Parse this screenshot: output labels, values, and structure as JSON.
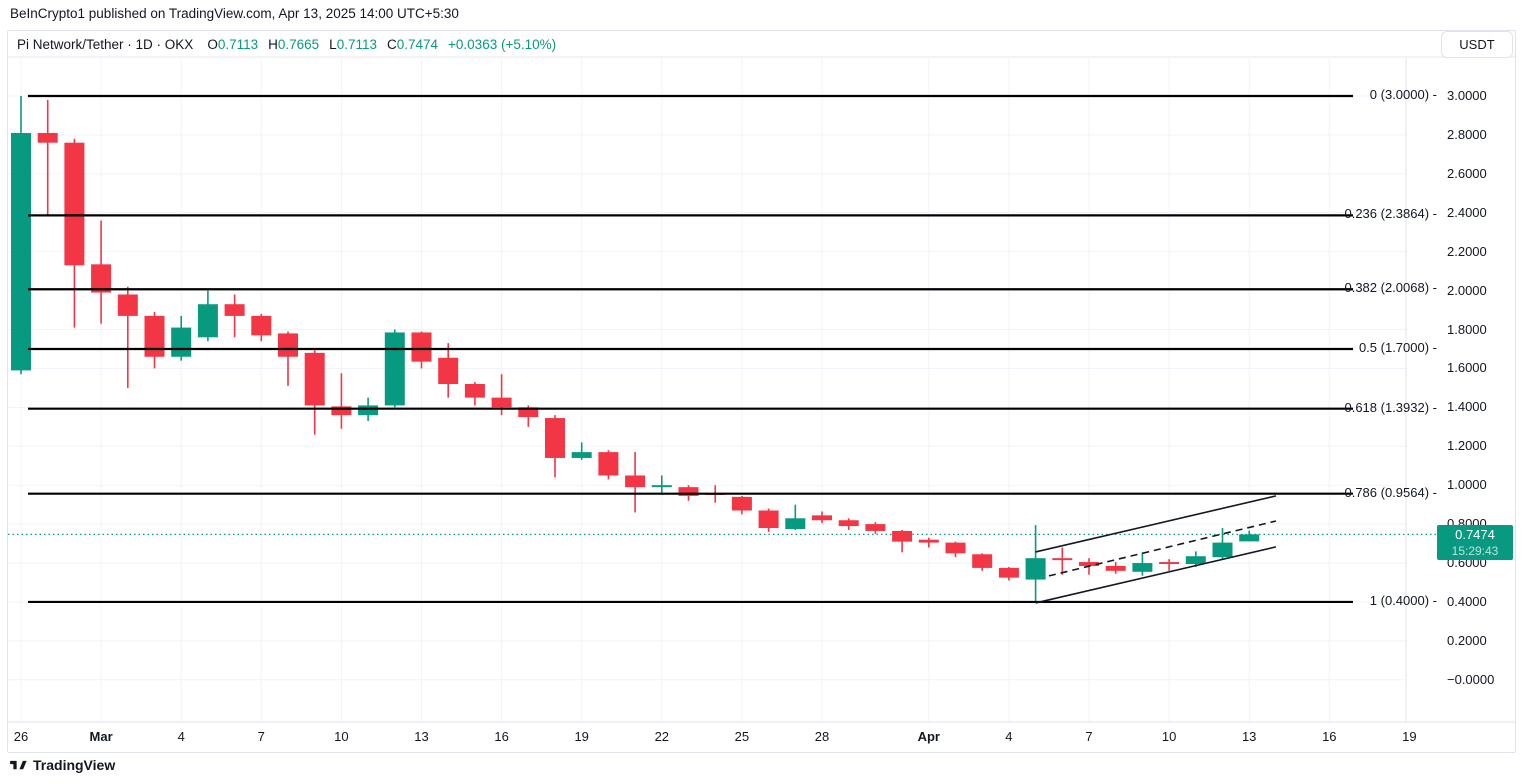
{
  "header": {
    "published_line": "BeInCrypto1 published on TradingView.com, Apr 13, 2025 14:00 UTC+5:30"
  },
  "toolbar": {
    "currency_button": "USDT"
  },
  "legend": {
    "symbol_line": "Pi Network/Tether · 1D · OKX",
    "o_key": "O",
    "o_val": "0.7113",
    "h_key": "H",
    "h_val": "0.7665",
    "l_key": "L",
    "l_val": "0.7113",
    "c_key": "C",
    "c_val": "0.7474",
    "change": "+0.0363 (+5.10%)"
  },
  "footer": {
    "logo_text": "TradingView"
  },
  "chart_data": {
    "type": "candlestick",
    "symbol": "Pi Network/Tether",
    "interval": "1D",
    "exchange": "OKX",
    "up_color": "#089981",
    "down_color": "#F23645",
    "grid_color": "#f1f3fa",
    "fib_line_color": "#000000",
    "channel_color": "#131722",
    "current_price": {
      "value": 0.7474,
      "text": "0.7474",
      "countdown": "15:29:43"
    },
    "price_axis": {
      "min": 0.0,
      "max": 3.0,
      "step": 0.2,
      "labels": [
        {
          "text": "3.0000",
          "price": 3.0
        },
        {
          "text": "2.8000",
          "price": 2.8
        },
        {
          "text": "2.6000",
          "price": 2.6
        },
        {
          "text": "2.4000",
          "price": 2.4
        },
        {
          "text": "2.2000",
          "price": 2.2
        },
        {
          "text": "2.0000",
          "price": 2.0
        },
        {
          "text": "1.8000",
          "price": 1.8
        },
        {
          "text": "1.6000",
          "price": 1.6
        },
        {
          "text": "1.4000",
          "price": 1.4
        },
        {
          "text": "1.2000",
          "price": 1.2
        },
        {
          "text": "1.0000",
          "price": 1.0
        },
        {
          "text": "0.8000",
          "price": 0.8
        },
        {
          "text": "0.6000",
          "price": 0.6
        },
        {
          "text": "0.4000",
          "price": 0.4
        },
        {
          "text": "0.2000",
          "price": 0.2
        },
        {
          "text": "−0.0000",
          "price": 0.0
        }
      ]
    },
    "time_axis": {
      "labels": [
        {
          "text": "26",
          "day": 0
        },
        {
          "text": "Mar",
          "day": 3,
          "bold": true
        },
        {
          "text": "4",
          "day": 6
        },
        {
          "text": "7",
          "day": 9
        },
        {
          "text": "10",
          "day": 12
        },
        {
          "text": "13",
          "day": 15
        },
        {
          "text": "16",
          "day": 18
        },
        {
          "text": "19",
          "day": 21
        },
        {
          "text": "22",
          "day": 24
        },
        {
          "text": "25",
          "day": 27
        },
        {
          "text": "28",
          "day": 30
        },
        {
          "text": "Apr",
          "day": 34,
          "bold": true
        },
        {
          "text": "4",
          "day": 37
        },
        {
          "text": "7",
          "day": 40
        },
        {
          "text": "10",
          "day": 43
        },
        {
          "text": "13",
          "day": 46
        },
        {
          "text": "16",
          "day": 49
        },
        {
          "text": "19",
          "day": 52
        }
      ]
    },
    "fib_retracement": [
      {
        "ratio": "0",
        "price": 3.0,
        "label": "0 (3.0000) -"
      },
      {
        "ratio": "0.236",
        "price": 2.3864,
        "label": "0.236 (2.3864) -"
      },
      {
        "ratio": "0.382",
        "price": 2.0068,
        "label": "0.382 (2.0068) -"
      },
      {
        "ratio": "0.5",
        "price": 1.7,
        "label": "0.5 (1.7000) -"
      },
      {
        "ratio": "0.618",
        "price": 1.3932,
        "label": "0.618 (1.3932) -"
      },
      {
        "ratio": "0.786",
        "price": 0.9564,
        "label": "0.786 (0.9564) -"
      },
      {
        "ratio": "1",
        "price": 0.4,
        "label": "1 (0.4000) -"
      }
    ],
    "channel": {
      "lines": [
        {
          "d1": 38,
          "p1": 0.657,
          "d2": 47,
          "p2": 0.945,
          "dashed": false
        },
        {
          "d1": 38,
          "p1": 0.395,
          "d2": 47,
          "p2": 0.683,
          "dashed": false
        },
        {
          "d1": 38.5,
          "p1": 0.534,
          "d2": 47,
          "p2": 0.816,
          "dashed": true
        }
      ]
    },
    "candles": [
      {
        "date": "Feb 26",
        "o": 1.59,
        "h": 3.0,
        "l": 1.57,
        "c": 2.81
      },
      {
        "date": "Feb 27",
        "o": 2.81,
        "h": 2.98,
        "l": 2.39,
        "c": 2.76
      },
      {
        "date": "Feb 28",
        "o": 2.76,
        "h": 2.78,
        "l": 1.81,
        "c": 2.13
      },
      {
        "date": "Mar 1",
        "o": 2.135,
        "h": 2.36,
        "l": 1.83,
        "c": 1.99
      },
      {
        "date": "Mar 2",
        "o": 1.98,
        "h": 2.02,
        "l": 1.5,
        "c": 1.87
      },
      {
        "date": "Mar 3",
        "o": 1.87,
        "h": 1.89,
        "l": 1.6,
        "c": 1.66
      },
      {
        "date": "Mar 4",
        "o": 1.66,
        "h": 1.87,
        "l": 1.64,
        "c": 1.81
      },
      {
        "date": "Mar 5",
        "o": 1.76,
        "h": 2.0,
        "l": 1.74,
        "c": 1.93
      },
      {
        "date": "Mar 6",
        "o": 1.93,
        "h": 1.98,
        "l": 1.76,
        "c": 1.87
      },
      {
        "date": "Mar 7",
        "o": 1.87,
        "h": 1.88,
        "l": 1.74,
        "c": 1.77
      },
      {
        "date": "Mar 8",
        "o": 1.78,
        "h": 1.79,
        "l": 1.51,
        "c": 1.66
      },
      {
        "date": "Mar 9",
        "o": 1.68,
        "h": 1.7,
        "l": 1.26,
        "c": 1.41
      },
      {
        "date": "Mar 10",
        "o": 1.405,
        "h": 1.575,
        "l": 1.29,
        "c": 1.36
      },
      {
        "date": "Mar 11",
        "o": 1.36,
        "h": 1.45,
        "l": 1.33,
        "c": 1.41
      },
      {
        "date": "Mar 12",
        "o": 1.41,
        "h": 1.8,
        "l": 1.4,
        "c": 1.785
      },
      {
        "date": "Mar 13",
        "o": 1.785,
        "h": 1.79,
        "l": 1.6,
        "c": 1.635
      },
      {
        "date": "Mar 14",
        "o": 1.655,
        "h": 1.73,
        "l": 1.45,
        "c": 1.52
      },
      {
        "date": "Mar 15",
        "o": 1.52,
        "h": 1.53,
        "l": 1.41,
        "c": 1.45
      },
      {
        "date": "Mar 16",
        "o": 1.45,
        "h": 1.57,
        "l": 1.36,
        "c": 1.4
      },
      {
        "date": "Mar 17",
        "o": 1.4,
        "h": 1.41,
        "l": 1.3,
        "c": 1.35
      },
      {
        "date": "Mar 18",
        "o": 1.345,
        "h": 1.36,
        "l": 1.04,
        "c": 1.14
      },
      {
        "date": "Mar 19",
        "o": 1.14,
        "h": 1.22,
        "l": 1.13,
        "c": 1.17
      },
      {
        "date": "Mar 20",
        "o": 1.17,
        "h": 1.18,
        "l": 1.03,
        "c": 1.05
      },
      {
        "date": "Mar 21",
        "o": 1.05,
        "h": 1.17,
        "l": 0.86,
        "c": 0.99
      },
      {
        "date": "Mar 22",
        "o": 0.99,
        "h": 1.05,
        "l": 0.95,
        "c": 1.0
      },
      {
        "date": "Mar 23",
        "o": 0.99,
        "h": 1.0,
        "l": 0.92,
        "c": 0.945
      },
      {
        "date": "Mar 24",
        "o": 0.96,
        "h": 1.0,
        "l": 0.91,
        "c": 0.95
      },
      {
        "date": "Mar 25",
        "o": 0.94,
        "h": 0.945,
        "l": 0.85,
        "c": 0.87
      },
      {
        "date": "Mar 26",
        "o": 0.87,
        "h": 0.88,
        "l": 0.76,
        "c": 0.78
      },
      {
        "date": "Mar 27",
        "o": 0.775,
        "h": 0.9,
        "l": 0.77,
        "c": 0.83
      },
      {
        "date": "Mar 28",
        "o": 0.845,
        "h": 0.865,
        "l": 0.805,
        "c": 0.82
      },
      {
        "date": "Mar 29",
        "o": 0.82,
        "h": 0.83,
        "l": 0.77,
        "c": 0.79
      },
      {
        "date": "Mar 30",
        "o": 0.8,
        "h": 0.81,
        "l": 0.75,
        "c": 0.765
      },
      {
        "date": "Mar 31",
        "o": 0.765,
        "h": 0.77,
        "l": 0.655,
        "c": 0.71
      },
      {
        "date": "Apr 1",
        "o": 0.72,
        "h": 0.73,
        "l": 0.68,
        "c": 0.705
      },
      {
        "date": "Apr 2",
        "o": 0.705,
        "h": 0.71,
        "l": 0.63,
        "c": 0.65
      },
      {
        "date": "Apr 3",
        "o": 0.645,
        "h": 0.65,
        "l": 0.56,
        "c": 0.575
      },
      {
        "date": "Apr 4",
        "o": 0.575,
        "h": 0.58,
        "l": 0.51,
        "c": 0.525
      },
      {
        "date": "Apr 5",
        "o": 0.515,
        "h": 0.795,
        "l": 0.395,
        "c": 0.625
      },
      {
        "date": "Apr 6",
        "o": 0.625,
        "h": 0.68,
        "l": 0.54,
        "c": 0.615
      },
      {
        "date": "Apr 7",
        "o": 0.605,
        "h": 0.625,
        "l": 0.54,
        "c": 0.585
      },
      {
        "date": "Apr 8",
        "o": 0.585,
        "h": 0.605,
        "l": 0.545,
        "c": 0.56
      },
      {
        "date": "Apr 9",
        "o": 0.555,
        "h": 0.655,
        "l": 0.535,
        "c": 0.6
      },
      {
        "date": "Apr 10",
        "o": 0.605,
        "h": 0.62,
        "l": 0.56,
        "c": 0.595
      },
      {
        "date": "Apr 11",
        "o": 0.595,
        "h": 0.66,
        "l": 0.58,
        "c": 0.635
      },
      {
        "date": "Apr 12",
        "o": 0.63,
        "h": 0.78,
        "l": 0.62,
        "c": 0.705
      },
      {
        "date": "Apr 13",
        "o": 0.7113,
        "h": 0.7665,
        "l": 0.7113,
        "c": 0.7474
      }
    ]
  }
}
